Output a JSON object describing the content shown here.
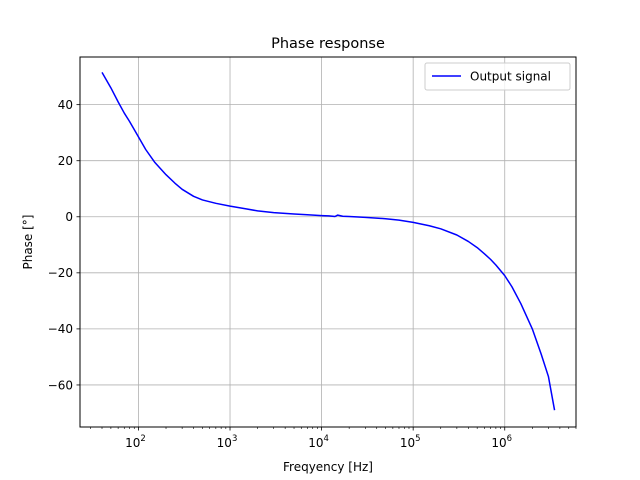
{
  "chart_data": {
    "type": "line",
    "title": "Phase response",
    "xlabel": "Freqyency [Hz]",
    "ylabel": "Phase [°]",
    "xscale": "log",
    "xlim": [
      23,
      6000000
    ],
    "ylim": [
      -75,
      57
    ],
    "xticks": [
      {
        "value": 100,
        "base": "10",
        "exp": "2"
      },
      {
        "value": 1000,
        "base": "10",
        "exp": "3"
      },
      {
        "value": 10000,
        "base": "10",
        "exp": "4"
      },
      {
        "value": 100000,
        "base": "10",
        "exp": "5"
      },
      {
        "value": 1000000,
        "base": "10",
        "exp": "6"
      }
    ],
    "yticks": [
      {
        "value": 40,
        "label": "40"
      },
      {
        "value": 20,
        "label": "20"
      },
      {
        "value": 0,
        "label": "0"
      },
      {
        "value": -20,
        "label": "−20"
      },
      {
        "value": -40,
        "label": "−40"
      },
      {
        "value": -60,
        "label": "−60"
      }
    ],
    "grid": true,
    "legend_position": "top-right",
    "series": [
      {
        "name": "Output signal",
        "color": "#0000ff",
        "x": [
          40,
          50,
          60,
          70,
          80,
          100,
          120,
          150,
          200,
          250,
          300,
          400,
          500,
          700,
          1000,
          1500,
          2000,
          3000,
          5000,
          7000,
          10000,
          12000,
          14000,
          15000,
          17000,
          20000,
          30000,
          50000,
          70000,
          100000,
          150000,
          200000,
          300000,
          400000,
          500000,
          600000,
          700000,
          800000,
          1000000,
          1200000,
          1500000,
          2000000,
          2500000,
          3000000,
          3500000
        ],
        "y": [
          51.5,
          46,
          41,
          37,
          34,
          28.5,
          24,
          19.5,
          15,
          12,
          9.8,
          7.3,
          6,
          4.8,
          3.8,
          2.8,
          2.1,
          1.5,
          1.0,
          0.7,
          0.4,
          0.3,
          0.1,
          0.6,
          0.2,
          0.1,
          -0.2,
          -0.7,
          -1.2,
          -2.0,
          -3.2,
          -4.3,
          -6.5,
          -8.8,
          -11,
          -13.2,
          -15.2,
          -17.2,
          -21,
          -25,
          -31,
          -40,
          -49,
          -57,
          -69
        ]
      }
    ]
  }
}
